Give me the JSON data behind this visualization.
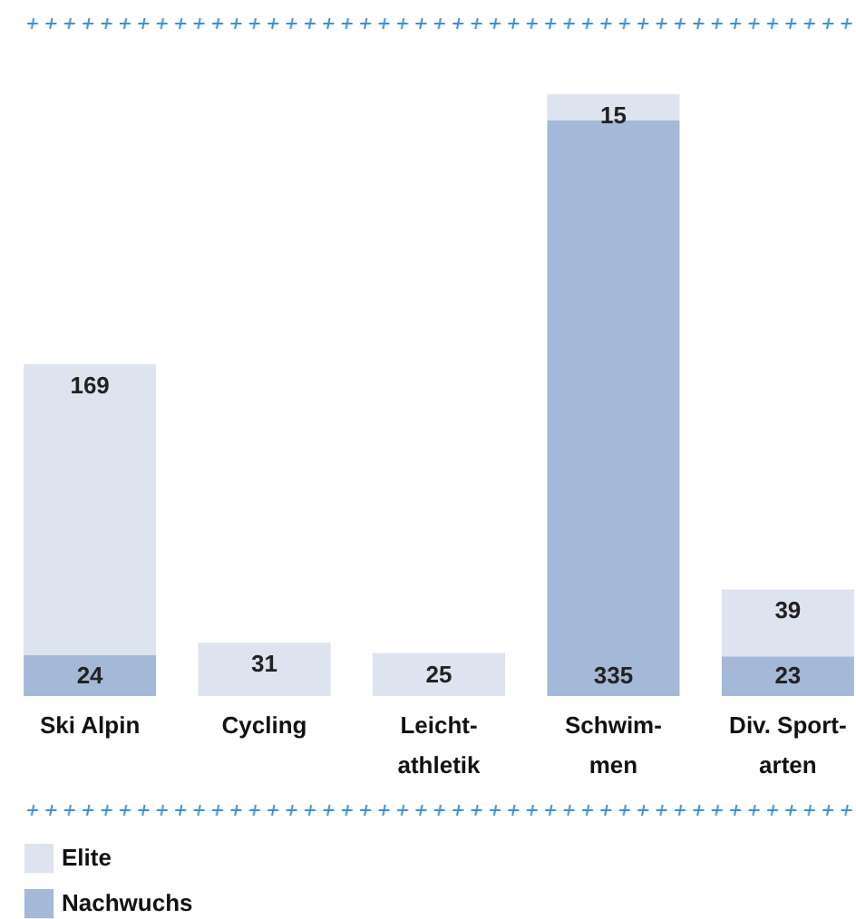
{
  "chart_data": {
    "type": "bar",
    "stacked": true,
    "data_labels": true,
    "legend": "bottom left",
    "categories": [
      "Ski Alpin",
      "Cycling",
      "Leicht-athletik",
      "Schwim-men",
      "Div. Sport-arten"
    ],
    "series": [
      {
        "name": "Nachwuchs",
        "color": "#a4b8d8",
        "values": [
          24,
          null,
          null,
          335,
          23
        ]
      },
      {
        "name": "Elite",
        "color": "#dde3ef",
        "values": [
          169,
          31,
          25,
          15,
          39
        ]
      }
    ]
  }
}
